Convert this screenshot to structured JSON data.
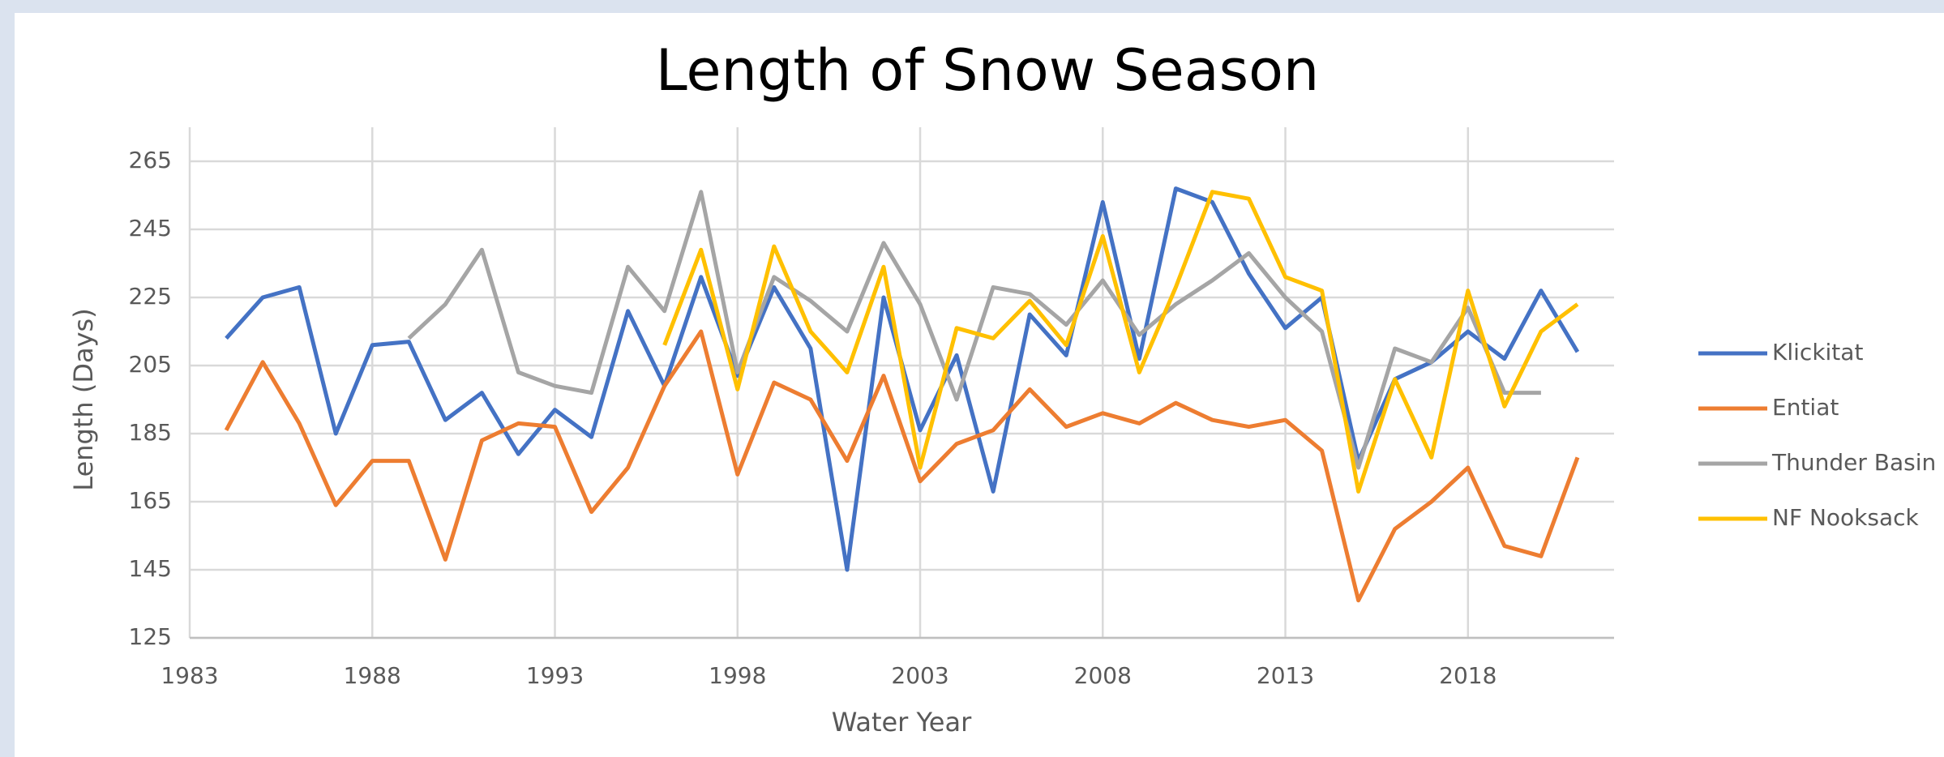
{
  "chart_data": {
    "type": "line",
    "title": "Length of Snow Season",
    "x_label": "Water Year",
    "y_label": "Length (Days)",
    "x": [
      1984,
      1985,
      1986,
      1987,
      1988,
      1989,
      1990,
      1991,
      1992,
      1993,
      1994,
      1995,
      1996,
      1997,
      1998,
      1999,
      2000,
      2001,
      2002,
      2003,
      2004,
      2005,
      2006,
      2007,
      2008,
      2009,
      2010,
      2011,
      2012,
      2013,
      2014,
      2015,
      2016,
      2017,
      2018,
      2019,
      2020,
      2021
    ],
    "series": [
      {
        "name": "Klickitat",
        "color": "#4472c4",
        "values": [
          213,
          225,
          228,
          185,
          211,
          212,
          189,
          197,
          179,
          192,
          184,
          221,
          199,
          231,
          202,
          228,
          210,
          145,
          225,
          186,
          208,
          168,
          220,
          208,
          253,
          207,
          257,
          253,
          232,
          216,
          225,
          177,
          201,
          206,
          215,
          207,
          227,
          209
        ]
      },
      {
        "name": "Entiat",
        "color": "#ed7d31",
        "values": [
          186,
          206,
          188,
          164,
          177,
          177,
          148,
          183,
          188,
          187,
          162,
          175,
          199,
          215,
          173,
          200,
          195,
          177,
          202,
          171,
          182,
          186,
          198,
          187,
          191,
          188,
          194,
          189,
          187,
          189,
          180,
          136,
          157,
          165,
          175,
          152,
          149,
          178
        ]
      },
      {
        "name": "Thunder Basin",
        "color": "#a5a5a5",
        "values": [
          null,
          null,
          null,
          null,
          null,
          213,
          223,
          239,
          203,
          199,
          197,
          234,
          221,
          256,
          203,
          231,
          224,
          215,
          241,
          223,
          195,
          228,
          226,
          217,
          230,
          214,
          223,
          230,
          238,
          225,
          215,
          175,
          210,
          206,
          222,
          197,
          197,
          null
        ]
      },
      {
        "name": "NF Nooksack",
        "color": "#ffc000",
        "values": [
          null,
          null,
          null,
          null,
          null,
          null,
          null,
          null,
          null,
          null,
          null,
          null,
          211,
          239,
          198,
          240,
          215,
          203,
          234,
          175,
          216,
          213,
          224,
          211,
          243,
          203,
          228,
          256,
          254,
          231,
          227,
          168,
          201,
          178,
          227,
          193,
          215,
          223
        ]
      }
    ],
    "xlim": [
      1983,
      2022
    ],
    "xticks": [
      1983,
      1988,
      1993,
      1998,
      2003,
      2008,
      2013,
      2018
    ],
    "ylim": [
      125,
      265
    ],
    "yticks": [
      125,
      145,
      165,
      185,
      205,
      225,
      245,
      265
    ],
    "grid": true,
    "legend": "right"
  }
}
